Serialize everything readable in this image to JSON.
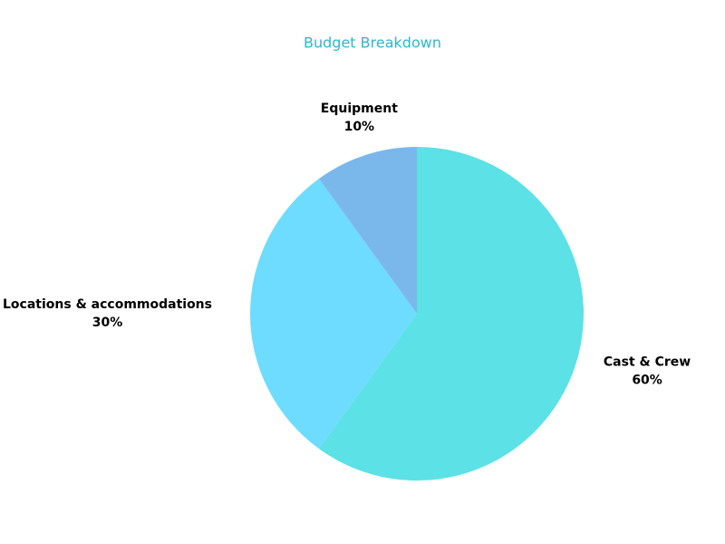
{
  "chart_data": {
    "type": "pie",
    "title": "Budget Breakdown",
    "categories": [
      "Cast & Crew",
      "Locations & accommodations",
      "Equipment"
    ],
    "values": [
      60,
      30,
      10
    ],
    "value_labels": [
      "60%",
      "30%",
      "10%"
    ],
    "colors": [
      "#5ce1e6",
      "#6ddcff",
      "#7ab8ec"
    ]
  }
}
